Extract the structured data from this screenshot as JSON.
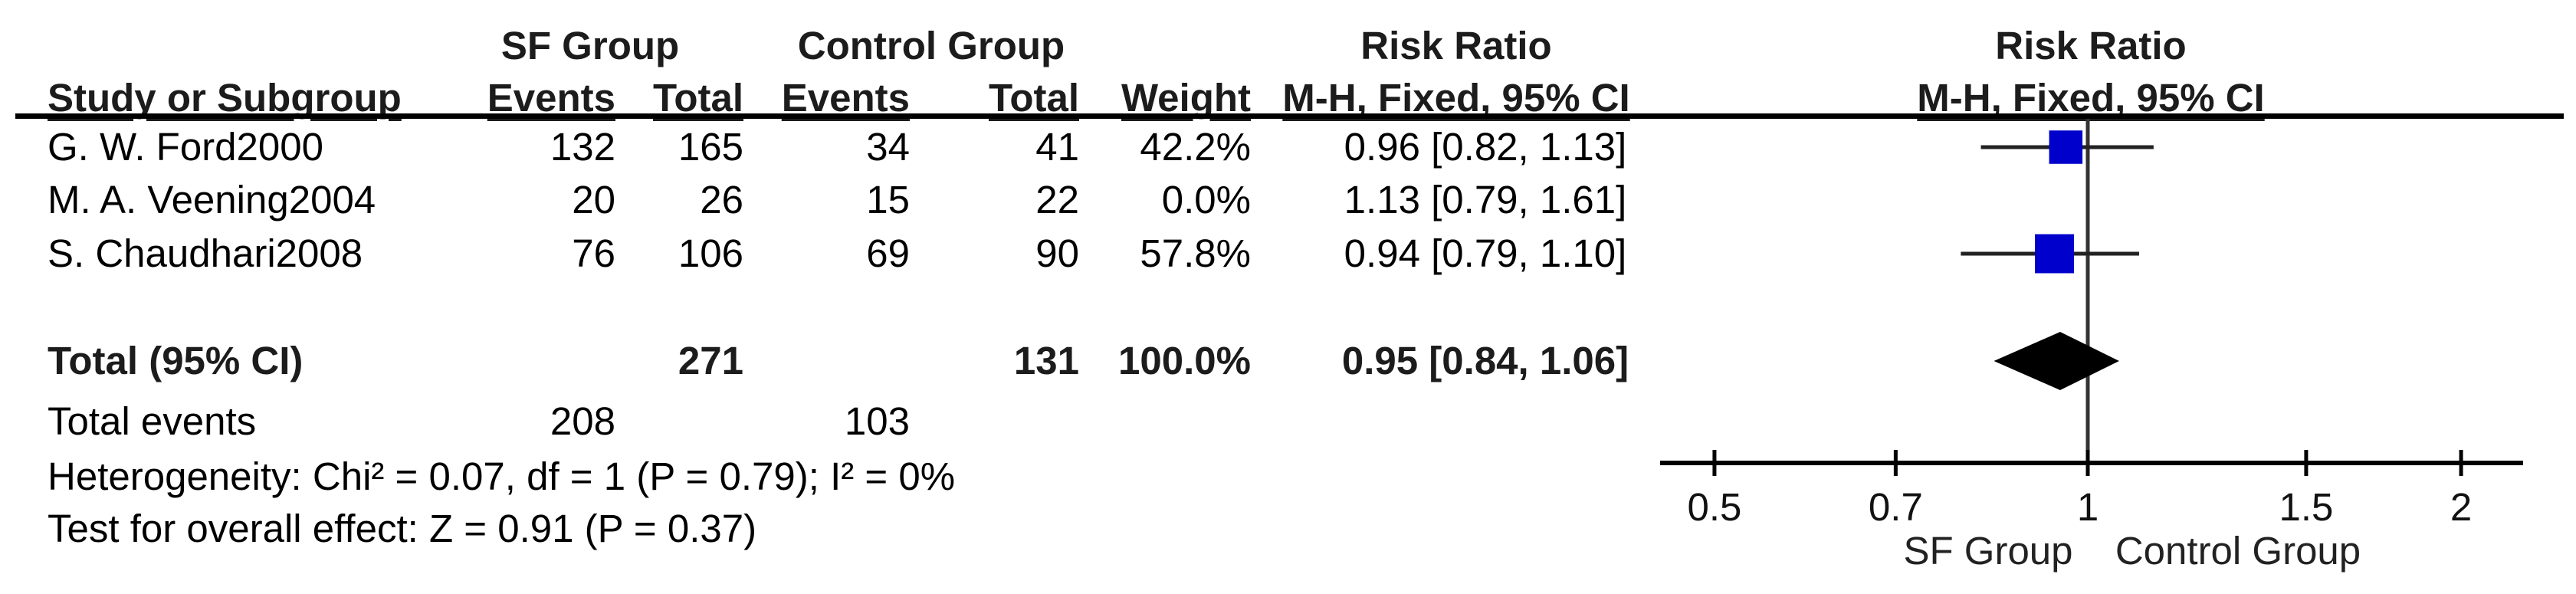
{
  "table": {
    "col_headers_top": {
      "sf_group": "SF Group",
      "control_group": "Control Group",
      "risk_ratio_left": "Risk Ratio",
      "risk_ratio_right": "Risk Ratio"
    },
    "col_headers": {
      "study": "Study or Subgroup",
      "sf_events": "Events",
      "sf_total": "Total",
      "ctrl_events": "Events",
      "ctrl_total": "Total",
      "weight": "Weight",
      "mh_left": "M-H, Fixed, 95% CI",
      "mh_right": "M-H, Fixed, 95% CI"
    },
    "rows": [
      {
        "study": "G. W. Ford2000",
        "sf_events": "132",
        "sf_total": "165",
        "ctrl_events": "34",
        "ctrl_total": "41",
        "weight": "42.2%",
        "rr_ci": "0.96 [0.82, 1.13]"
      },
      {
        "study": "M. A. Veening2004",
        "sf_events": "20",
        "sf_total": "26",
        "ctrl_events": "15",
        "ctrl_total": "22",
        "weight": "0.0%",
        "rr_ci": "1.13 [0.79, 1.61]"
      },
      {
        "study": "S. Chaudhari2008",
        "sf_events": "76",
        "sf_total": "106",
        "ctrl_events": "69",
        "ctrl_total": "90",
        "weight": "57.8%",
        "rr_ci": "0.94 [0.79, 1.10]"
      }
    ],
    "total_row": {
      "label": "Total (95% CI)",
      "sf_total": "271",
      "ctrl_total": "131",
      "weight": "100.0%",
      "rr_ci": "0.95 [0.84, 1.06]"
    },
    "total_events_row": {
      "label": "Total events",
      "sf_events": "208",
      "ctrl_events": "103"
    },
    "heterogeneity_line": "Heterogeneity: Chi² = 0.07, df = 1 (P = 0.79); I² = 0%",
    "overall_effect_line": "Test for overall effect: Z = 0.91 (P = 0.37)"
  },
  "chart_data": {
    "type": "forest",
    "effect_measure": "Risk Ratio",
    "method": "M-H, Fixed, 95% CI",
    "scale": "log",
    "studies": [
      {
        "name": "G. W. Ford2000",
        "rr": 0.96,
        "ci_low": 0.82,
        "ci_high": 1.13,
        "weight": 42.2,
        "marker_drawn": true
      },
      {
        "name": "M. A. Veening2004",
        "rr": 1.13,
        "ci_low": 0.79,
        "ci_high": 1.61,
        "weight": 0.0,
        "marker_drawn": false
      },
      {
        "name": "S. Chaudhari2008",
        "rr": 0.94,
        "ci_low": 0.79,
        "ci_high": 1.1,
        "weight": 57.8,
        "marker_drawn": true
      }
    ],
    "total": {
      "rr": 0.95,
      "ci_low": 0.84,
      "ci_high": 1.06
    },
    "axis": {
      "ticks": [
        0.5,
        0.7,
        1,
        1.5,
        2
      ],
      "min": 0.45,
      "max": 2.24,
      "reference_value": 1
    },
    "axis_labels": {
      "left": "SF Group",
      "right": "Control Group"
    },
    "colors": {
      "square": "#0000CC",
      "diamond": "#000000",
      "ci_line": "#222222",
      "ref_line": "#333333",
      "axis": "#000000"
    }
  }
}
